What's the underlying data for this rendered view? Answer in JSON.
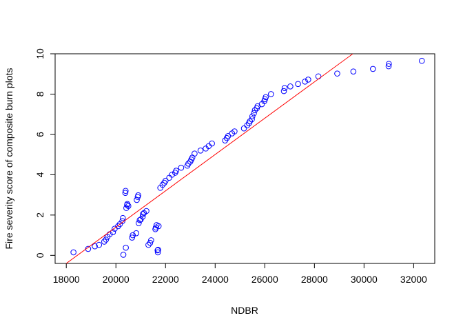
{
  "chart_data": {
    "type": "scatter",
    "title": "",
    "xlabel": "NDBR",
    "ylabel": "Fire severity score of composite burn plots",
    "xlim": [
      17550,
      32850
    ],
    "ylim": [
      -0.4,
      10
    ],
    "xticks": [
      18000,
      20000,
      22000,
      24000,
      26000,
      28000,
      30000,
      32000
    ],
    "xtick_labels": [
      "18000",
      "20000",
      "22000",
      "24000",
      "26000",
      "28000",
      "30000",
      "32000"
    ],
    "yticks": [
      0,
      2,
      4,
      6,
      8,
      10
    ],
    "ytick_labels": [
      "0",
      "2",
      "4",
      "6",
      "8",
      "10"
    ],
    "grid": false,
    "legend": "none",
    "series": [
      {
        "marker": "open-circle",
        "color": "#0000ff",
        "x": [
          18290,
          18880,
          19150,
          19320,
          19530,
          19600,
          19660,
          19750,
          19880,
          19950,
          20090,
          20160,
          20260,
          20280,
          20300,
          20380,
          20390,
          20400,
          20420,
          20450,
          20460,
          20500,
          20650,
          20680,
          20820,
          20840,
          20880,
          20900,
          20920,
          20960,
          21000,
          21080,
          21090,
          21130,
          21230,
          21310,
          21380,
          21420,
          21590,
          21610,
          21640,
          21680,
          21690,
          21700,
          21720,
          21790,
          21880,
          21950,
          22000,
          22150,
          22260,
          22390,
          22430,
          22630,
          22880,
          22920,
          23000,
          23040,
          23080,
          23170,
          23410,
          23620,
          23740,
          23870,
          24400,
          24470,
          24520,
          24680,
          24780,
          25160,
          25290,
          25360,
          25400,
          25480,
          25500,
          25560,
          25600,
          25680,
          25710,
          25880,
          25980,
          26010,
          26040,
          26250,
          26770,
          26800,
          27030,
          27340,
          27620,
          27750,
          28160,
          28920,
          29570,
          30360,
          30990,
          31000,
          32330
        ],
        "y": [
          0.15,
          0.32,
          0.45,
          0.52,
          0.68,
          0.78,
          0.92,
          1.05,
          1.15,
          1.32,
          1.45,
          1.55,
          1.7,
          1.85,
          0.03,
          3.1,
          3.2,
          0.38,
          2.35,
          2.5,
          2.55,
          2.45,
          0.88,
          1.0,
          1.1,
          2.75,
          2.9,
          2.98,
          1.6,
          1.75,
          1.78,
          1.92,
          2.05,
          2.1,
          2.2,
          0.52,
          0.62,
          0.75,
          1.3,
          1.38,
          1.5,
          0.25,
          0.15,
          0.28,
          1.45,
          3.35,
          3.5,
          3.6,
          3.7,
          3.85,
          4.0,
          4.1,
          4.2,
          4.35,
          4.45,
          4.55,
          4.65,
          4.75,
          4.85,
          5.05,
          5.2,
          5.3,
          5.42,
          5.55,
          5.7,
          5.82,
          5.92,
          6.05,
          6.15,
          6.3,
          6.45,
          6.55,
          6.65,
          6.75,
          6.9,
          7.05,
          7.2,
          7.3,
          7.4,
          7.5,
          7.65,
          7.75,
          7.85,
          8.0,
          8.15,
          8.3,
          8.38,
          8.5,
          8.62,
          8.72,
          8.88,
          9.02,
          9.12,
          9.25,
          9.38,
          9.5,
          9.65
        ]
      }
    ],
    "fit_line": {
      "color": "#ff0000",
      "points": [
        [
          18000,
          -0.4
        ],
        [
          29550,
          10
        ]
      ]
    }
  }
}
